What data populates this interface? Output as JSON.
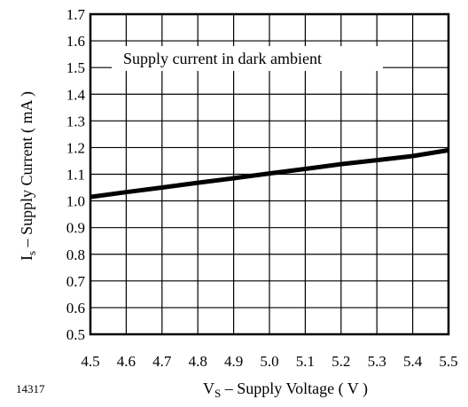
{
  "chart_data": {
    "type": "line",
    "title": "",
    "annotation": "Supply current in dark ambient",
    "figure_number": "14317",
    "xlabel": {
      "main": "V",
      "sub": "S",
      "rest": " – Supply Voltage ( V )"
    },
    "ylabel": {
      "main": "I",
      "sub": "s",
      "rest": " – Supply Current ( mA )"
    },
    "xlim": [
      4.5,
      5.5
    ],
    "ylim": [
      0.5,
      1.7
    ],
    "x_ticks": [
      "4.5",
      "4.6",
      "4.7",
      "4.8",
      "4.9",
      "5.0",
      "5.1",
      "5.2",
      "5.3",
      "5.4",
      "5.5"
    ],
    "y_ticks": [
      "0.5",
      "0.6",
      "0.7",
      "0.8",
      "0.9",
      "1.0",
      "1.1",
      "1.2",
      "1.3",
      "1.4",
      "1.5",
      "1.6",
      "1.7"
    ],
    "grid": true,
    "line_color": "#000000",
    "series": [
      {
        "x": [
          4.5,
          4.6,
          4.7,
          4.8,
          4.9,
          5.0,
          5.1,
          5.2,
          5.3,
          5.4,
          5.5
        ],
        "y": [
          1.015,
          1.033,
          1.05,
          1.068,
          1.085,
          1.103,
          1.12,
          1.138,
          1.153,
          1.168,
          1.19
        ]
      }
    ]
  }
}
